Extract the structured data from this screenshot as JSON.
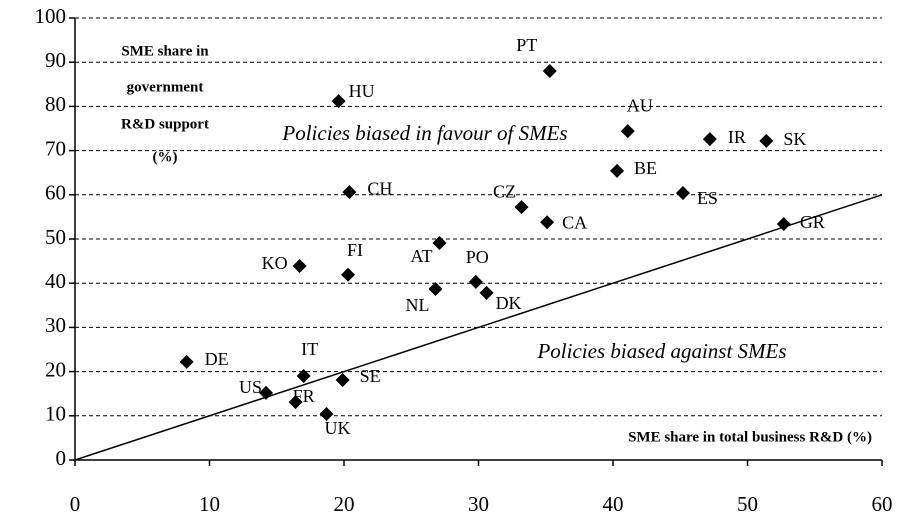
{
  "chart_data": {
    "type": "scatter",
    "y_axis_title": [
      "SME share in",
      "government",
      "R&D support",
      "(%)"
    ],
    "x_axis_title": "SME share in total business R&D (%)",
    "annotations": [
      "Policies biased in favour of SMEs",
      "Policies biased against SMEs"
    ],
    "labels": [
      "PT",
      "HU",
      "AU",
      "IR",
      "SK",
      "BE",
      "ES",
      "CH",
      "CZ",
      "CA",
      "GR",
      "AT",
      "KO",
      "FI",
      "PO",
      "NL",
      "DK",
      "DE",
      "IT",
      "SE",
      "US",
      "FR",
      "UK"
    ],
    "x": [
      35.3,
      19.6,
      41.1,
      47.2,
      51.4,
      40.3,
      45.2,
      20.4,
      33.2,
      35.1,
      52.7,
      27.1,
      16.7,
      20.3,
      29.8,
      26.8,
      30.6,
      8.3,
      17.0,
      19.9,
      14.2,
      16.4,
      18.7
    ],
    "values": [
      88.0,
      81.2,
      74.4,
      72.6,
      72.2,
      65.4,
      60.4,
      60.6,
      57.2,
      53.8,
      53.4,
      49.1,
      43.9,
      41.9,
      40.3,
      38.7,
      37.8,
      22.2,
      19.0,
      18.1,
      15.2,
      13.1,
      10.4
    ],
    "color": "#000000",
    "xlim": [
      0,
      60
    ],
    "xticks": [
      0,
      10,
      20,
      30,
      40,
      50,
      60
    ],
    "ylim": [
      0,
      100
    ],
    "yticks": [
      0,
      10,
      20,
      30,
      40,
      50,
      60,
      70,
      80,
      90,
      100
    ],
    "grid": true
  }
}
